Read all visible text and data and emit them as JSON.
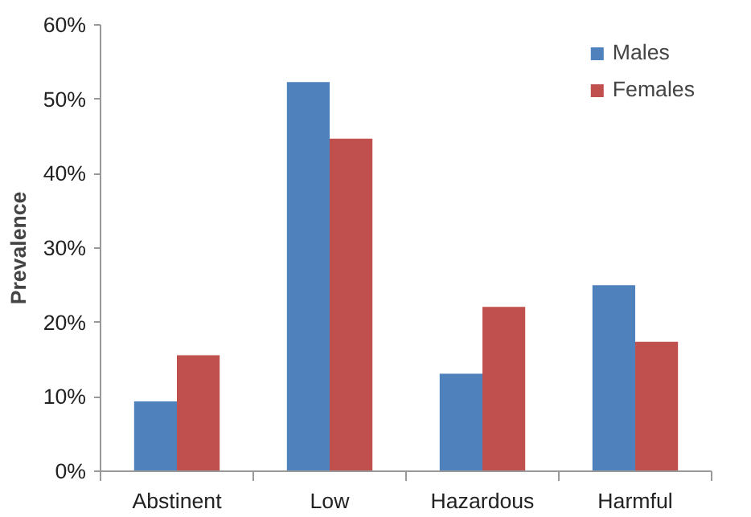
{
  "chart_data": {
    "type": "bar",
    "ylabel": "Prevalence",
    "categories": [
      "Abstinent",
      "Low",
      "Hazardous",
      "Harmful"
    ],
    "series": [
      {
        "name": "Males",
        "color": "#4f81bd",
        "values": [
          9.4,
          52.3,
          13.1,
          25.0
        ]
      },
      {
        "name": "Females",
        "color": "#c0504d",
        "values": [
          15.6,
          44.7,
          22.1,
          17.4
        ]
      }
    ],
    "ylim": [
      0,
      60
    ],
    "yticks": [
      {
        "value": 0,
        "label": "0%"
      },
      {
        "value": 10,
        "label": "10%"
      },
      {
        "value": 20,
        "label": "20%"
      },
      {
        "value": 30,
        "label": "30%"
      },
      {
        "value": 40,
        "label": "40%"
      },
      {
        "value": 50,
        "label": "50%"
      },
      {
        "value": 60,
        "label": "60%"
      }
    ],
    "grid": false,
    "legend": "top right"
  }
}
